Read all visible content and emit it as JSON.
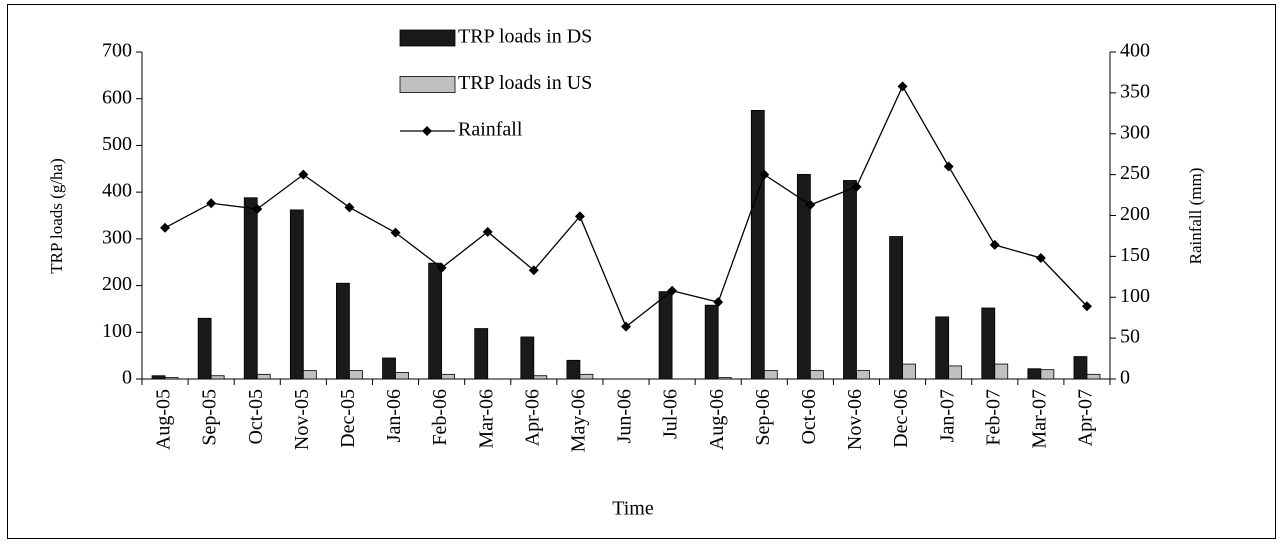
{
  "chart_data": {
    "type": "bar",
    "xlabel": "Time",
    "ylabel": "TRP loads (g/ha)",
    "y2label": "Rainfall (mm)",
    "categories": [
      "Aug-05",
      "Sep-05",
      "Oct-05",
      "Nov-05",
      "Dec-05",
      "Jan-06",
      "Feb-06",
      "Mar-06",
      "Apr-06",
      "May-06",
      "Jun-06",
      "Jul-06",
      "Aug-06",
      "Sep-06",
      "Oct-06",
      "Nov-06",
      "Dec-06",
      "Jan-07",
      "Feb-07",
      "Mar-07",
      "Apr-07"
    ],
    "series": [
      {
        "name": "TRP loads in DS",
        "type": "bar",
        "color": "#1a1a1a",
        "values": [
          7,
          130,
          388,
          362,
          205,
          45,
          248,
          108,
          90,
          40,
          0,
          187,
          158,
          575,
          438,
          425,
          305,
          133,
          152,
          22,
          48
        ]
      },
      {
        "name": "TRP loads in US",
        "type": "bar",
        "color": "#c0c0c0",
        "values": [
          3,
          7,
          10,
          18,
          18,
          14,
          10,
          0,
          7,
          10,
          0,
          0,
          3,
          18,
          18,
          18,
          32,
          28,
          32,
          20,
          10
        ]
      },
      {
        "name": "Rainfall",
        "type": "line",
        "axis": "y2",
        "color": "#000000",
        "values": [
          185,
          215,
          208,
          250,
          210,
          179,
          136,
          180,
          133,
          199,
          64,
          108,
          94,
          250,
          213,
          235,
          358,
          260,
          164,
          148,
          89
        ]
      }
    ],
    "ylim": [
      0,
      700
    ],
    "yticks": [
      0,
      100,
      200,
      300,
      400,
      500,
      600,
      700
    ],
    "y2lim": [
      0,
      400
    ],
    "y2ticks": [
      0,
      50,
      100,
      150,
      200,
      250,
      300,
      350,
      400
    ],
    "grid": false,
    "legend": "upper-left"
  }
}
